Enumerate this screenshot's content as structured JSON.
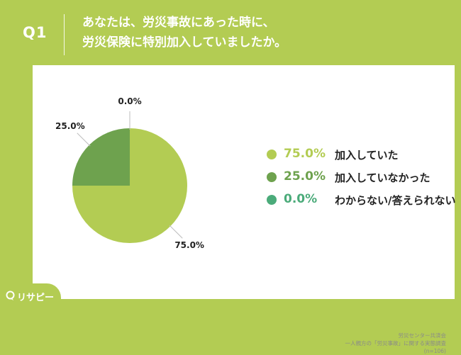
{
  "header": {
    "q_label": "Q1",
    "question_line1": "あなたは、労災事故にあった時に、",
    "question_line2": "労災保険に特別加入していましたか。"
  },
  "chart_data": {
    "type": "pie",
    "title": "",
    "categories": [
      "加入していた",
      "加入していなかった",
      "わからない/答えられない"
    ],
    "values": [
      75.0,
      25.0,
      0.0
    ],
    "labels": [
      "75.0%",
      "25.0%",
      "0.0%"
    ],
    "colors": [
      "#b3cc53",
      "#6ea24e",
      "#4bab7a"
    ],
    "legend_placement": "right"
  },
  "footnote": {
    "line1": "労災センター共済会",
    "line2": "一人親方の「労災事故」に関する実態調査",
    "line3": "(n=106)"
  },
  "logo": {
    "text": "リサピー"
  }
}
